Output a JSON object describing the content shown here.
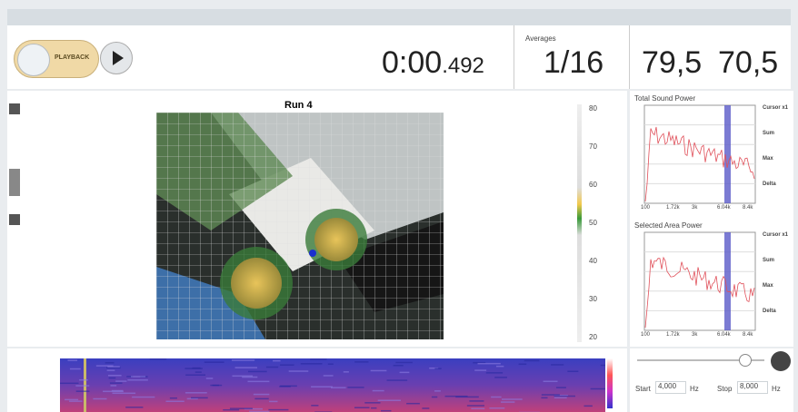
{
  "playback": {
    "button": "PLAYBACK",
    "time": "0:00",
    "time_fraction": ".492"
  },
  "averages": {
    "label": "Averages",
    "value": "1/16"
  },
  "levels": [
    "79,5",
    "70,5"
  ],
  "view": {
    "title": "Run 4",
    "scale": [
      "80",
      "70",
      "60",
      "50",
      "40",
      "30",
      "20"
    ]
  },
  "panels": [
    {
      "title": "Total Sound Power",
      "x_labels": [
        "100",
        "1.72k",
        "3k",
        "6.04k",
        "8.4k"
      ],
      "side": [
        "Cursor x1",
        "Sum",
        "Max",
        "Delta"
      ]
    },
    {
      "title": "Selected Area Power",
      "x_labels": [
        "100",
        "1.72k",
        "3k",
        "6.04k",
        "8.4k"
      ],
      "side": [
        "Cursor x1",
        "Sum",
        "Max",
        "Delta"
      ]
    }
  ],
  "range": {
    "start_label": "Start",
    "start": "4,000",
    "stop_label": "Stop",
    "stop": "8,000",
    "unit": "Hz"
  }
}
